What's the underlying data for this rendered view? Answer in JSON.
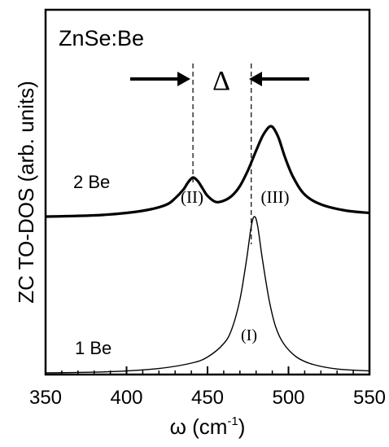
{
  "chart_data": {
    "type": "line",
    "title": "ZnSe:Be",
    "xlabel": "ω  (cm",
    "xlabel_sup": "-1",
    "xlabel_end": ")",
    "ylabel": "ZC TO-DOS (arb. units)",
    "xlim": [
      350,
      550
    ],
    "ylim": [
      0,
      1.5
    ],
    "x_ticks": [
      350,
      400,
      450,
      500,
      550
    ],
    "x_tick_labels": [
      "350",
      "400",
      "450",
      "500",
      "550"
    ],
    "y_ticks_shown": false,
    "grid": false,
    "series": [
      {
        "name": "1 Be",
        "line_width": "thin",
        "x": [
          350,
          380,
          400,
          420,
          440,
          450,
          460,
          465,
          470,
          474,
          477,
          479,
          481,
          484,
          488,
          492,
          497,
          505,
          515,
          530,
          550
        ],
        "y": [
          0.0,
          0.003,
          0.008,
          0.018,
          0.04,
          0.065,
          0.12,
          0.18,
          0.3,
          0.46,
          0.6,
          0.64,
          0.6,
          0.46,
          0.3,
          0.19,
          0.12,
          0.065,
          0.035,
          0.016,
          0.008
        ]
      },
      {
        "name": "2 Be",
        "line_width": "thick",
        "x": [
          350,
          380,
          400,
          415,
          425,
          430,
          435,
          438,
          441,
          444,
          447,
          450,
          455,
          460,
          465,
          470,
          475,
          480,
          484,
          487,
          489,
          491,
          494,
          498,
          503,
          510,
          520,
          535,
          550
        ],
        "y": [
          0.64,
          0.645,
          0.655,
          0.67,
          0.69,
          0.715,
          0.75,
          0.78,
          0.8,
          0.785,
          0.755,
          0.725,
          0.7,
          0.705,
          0.725,
          0.765,
          0.83,
          0.91,
          0.97,
          1.0,
          1.01,
          1.0,
          0.96,
          0.88,
          0.8,
          0.73,
          0.69,
          0.665,
          0.655
        ]
      }
    ],
    "annotations": {
      "series_label_1": "1 Be",
      "series_label_2": "2 Be",
      "peak_I": "(I)",
      "peak_II": "(II)",
      "peak_III": "(III)",
      "delta": "Δ",
      "dashed_lines_x": [
        441,
        477
      ]
    }
  }
}
